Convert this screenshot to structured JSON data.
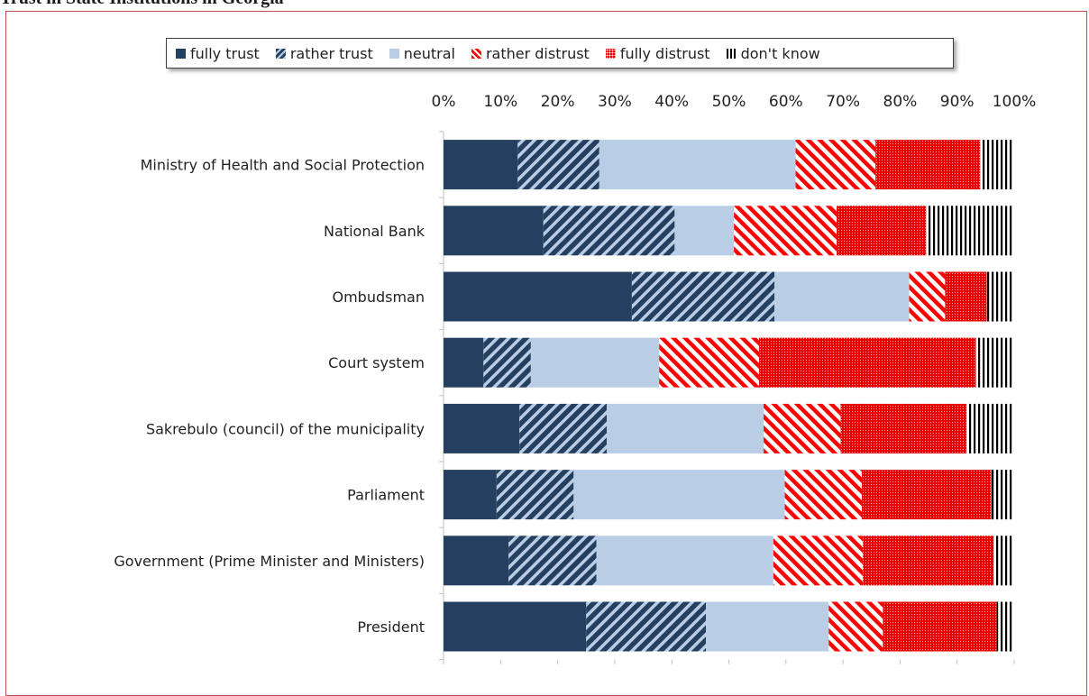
{
  "title": "Trust in State Institutions in Georgia",
  "legend": {
    "items": [
      {
        "label": "fully trust"
      },
      {
        "label": "rather trust"
      },
      {
        "label": "neutral"
      },
      {
        "label": "rather distrust"
      },
      {
        "label": "fully distrust"
      },
      {
        "label": "don't know"
      }
    ]
  },
  "chart_data": {
    "type": "bar",
    "orientation": "horizontal",
    "stacked": "100%",
    "title": "Trust in State Institutions in Georgia",
    "xlabel": "",
    "ylabel": "",
    "xlim": [
      0,
      100
    ],
    "x_ticks": [
      "0%",
      "10%",
      "20%",
      "30%",
      "40%",
      "50%",
      "60%",
      "70%",
      "80%",
      "90%",
      "100%"
    ],
    "legend_position": "top",
    "grid": false,
    "categories": [
      "Ministry of Health and Social Protection",
      "National Bank",
      "Ombudsman",
      "Court system",
      "Sakrebulo (council) of the municipality",
      "Parliament",
      "Government (Prime Minister and Ministers)",
      "President"
    ],
    "series": [
      {
        "name": "fully trust",
        "color": "#243f60",
        "pattern": "solid",
        "values": [
          13,
          17.5,
          33,
          7,
          13.3,
          9.3,
          11.4,
          25
        ]
      },
      {
        "name": "rather trust",
        "color": "#243f60",
        "pattern": "diagonal-stripes",
        "values": [
          14.3,
          23,
          25,
          8.3,
          15.3,
          13.5,
          15.4,
          21
        ]
      },
      {
        "name": "neutral",
        "color": "#b9cde5",
        "pattern": "solid",
        "values": [
          34.4,
          10.4,
          23.6,
          22.5,
          27.5,
          37,
          31,
          21.5
        ]
      },
      {
        "name": "rather distrust",
        "color": "#ff0000",
        "pattern": "diagonal-stripes",
        "values": [
          14,
          18,
          6.3,
          17.5,
          13.5,
          13.5,
          15.7,
          9.5
        ]
      },
      {
        "name": "fully distrust",
        "color": "#ff0000",
        "pattern": "checker",
        "values": [
          18.3,
          15.6,
          7.3,
          38,
          22,
          22.7,
          22.8,
          20
        ]
      },
      {
        "name": "don't know",
        "color": "#000000",
        "pattern": "vertical-stripes",
        "values": [
          6,
          15.5,
          4.8,
          6.7,
          8.4,
          4,
          3.7,
          3
        ]
      }
    ]
  }
}
